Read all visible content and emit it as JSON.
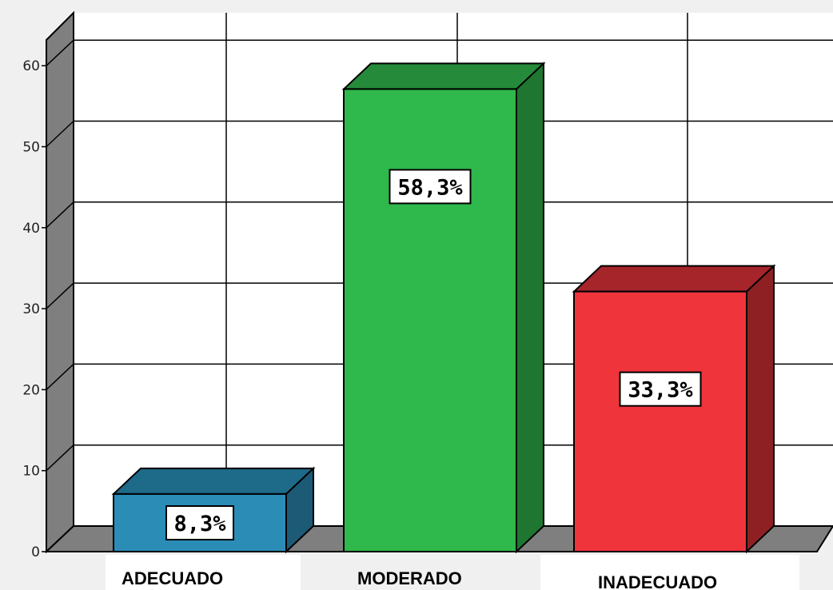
{
  "chart_data": {
    "type": "bar",
    "categories": [
      "ADECUADO",
      "MODERADO",
      "INADECUADO"
    ],
    "values": [
      8.3,
      58.3,
      33.3
    ],
    "data_labels": [
      "8,3%",
      "58,3%",
      "33,3%"
    ],
    "yticks": [
      "0",
      "10",
      "20",
      "30",
      "40",
      "50",
      "60"
    ],
    "ylim": [
      0,
      66
    ],
    "grid": true,
    "style": "3d",
    "colors": {
      "ADECUADO": {
        "front": "#2b8cb6",
        "side": "#1d5a75",
        "top": "#1e6a89"
      },
      "MODERADO": {
        "front": "#2fb84b",
        "side": "#1f7631",
        "top": "#258a3a"
      },
      "INADECUADO": {
        "front": "#ef343c",
        "side": "#8e2024",
        "top": "#a5252b"
      }
    }
  }
}
